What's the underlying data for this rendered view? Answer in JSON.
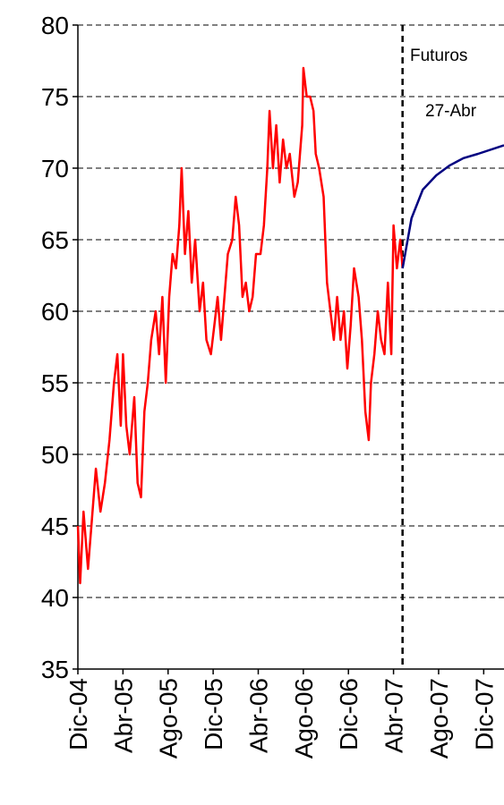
{
  "chart_data": {
    "type": "line",
    "annotations": [
      "Futuros",
      "27-Abr"
    ],
    "event_x": 28.8,
    "xlim": [
      0,
      37.8
    ],
    "xticks": [
      {
        "value": 0,
        "label": "Dic-04"
      },
      {
        "value": 4,
        "label": "Abr-05"
      },
      {
        "value": 8,
        "label": "Ago-05"
      },
      {
        "value": 12,
        "label": "Dic-05"
      },
      {
        "value": 16,
        "label": "Abr-06"
      },
      {
        "value": 20,
        "label": "Ago-06"
      },
      {
        "value": 24,
        "label": "Dic-06"
      },
      {
        "value": 28,
        "label": "Abr-07"
      },
      {
        "value": 32,
        "label": "Ago-07"
      },
      {
        "value": 36,
        "label": "Dic-07"
      }
    ],
    "ylim": [
      35,
      80
    ],
    "yticks": [
      35,
      40,
      45,
      50,
      55,
      60,
      65,
      70,
      75,
      80
    ],
    "grid": true,
    "series": [
      {
        "color": "#ff0000",
        "x": [
          0,
          0.2,
          0.5,
          0.9,
          1.2,
          1.6,
          2.0,
          2.4,
          2.8,
          3.2,
          3.5,
          3.8,
          4.0,
          4.3,
          4.6,
          5.0,
          5.3,
          5.6,
          5.9,
          6.2,
          6.5,
          6.9,
          7.2,
          7.5,
          7.8,
          8.1,
          8.4,
          8.7,
          9.0,
          9.2,
          9.5,
          9.8,
          10.1,
          10.4,
          10.8,
          11.1,
          11.4,
          11.8,
          12.1,
          12.4,
          12.7,
          13.0,
          13.3,
          13.7,
          14.0,
          14.3,
          14.6,
          14.9,
          15.2,
          15.5,
          15.8,
          16.2,
          16.5,
          16.8,
          17.0,
          17.3,
          17.6,
          17.9,
          18.2,
          18.5,
          18.8,
          19.2,
          19.5,
          19.9,
          20.0,
          20.3,
          20.6,
          20.9,
          21.1,
          21.4,
          21.8,
          22.1,
          22.4,
          22.7,
          23.0,
          23.3,
          23.6,
          23.9,
          24.2,
          24.5,
          24.9,
          25.2,
          25.5,
          25.8,
          26.0,
          26.3,
          26.6,
          26.9,
          27.2,
          27.5,
          27.8,
          28.0,
          28.3,
          28.6,
          28.8
        ],
        "values": [
          45,
          41,
          46,
          42,
          45,
          49,
          46,
          48,
          51,
          55,
          57,
          52,
          57,
          52,
          50,
          54,
          48,
          47,
          53,
          55,
          58,
          60,
          57,
          61,
          55,
          61,
          64,
          63,
          66,
          70,
          64,
          67,
          62,
          65,
          60,
          62,
          58,
          57,
          59,
          61,
          58,
          61,
          64,
          65,
          68,
          66,
          61,
          62,
          60,
          61,
          64,
          64,
          66,
          70,
          74,
          70,
          73,
          69,
          72,
          70,
          71,
          68,
          69,
          73,
          77,
          75,
          75,
          74,
          71,
          70,
          68,
          62,
          60,
          58,
          61,
          58,
          60,
          56,
          59,
          63,
          61,
          58,
          53,
          51,
          55,
          57,
          60,
          58,
          57,
          62,
          57,
          66,
          63,
          65,
          63
        ]
      },
      {
        "color": "#000080",
        "x": [
          28.8,
          29.6,
          30.6,
          31.8,
          33.0,
          34.2,
          35.5,
          37.8
        ],
        "values": [
          63,
          66.5,
          68.5,
          69.5,
          70.2,
          70.7,
          71,
          71.6
        ]
      }
    ]
  }
}
